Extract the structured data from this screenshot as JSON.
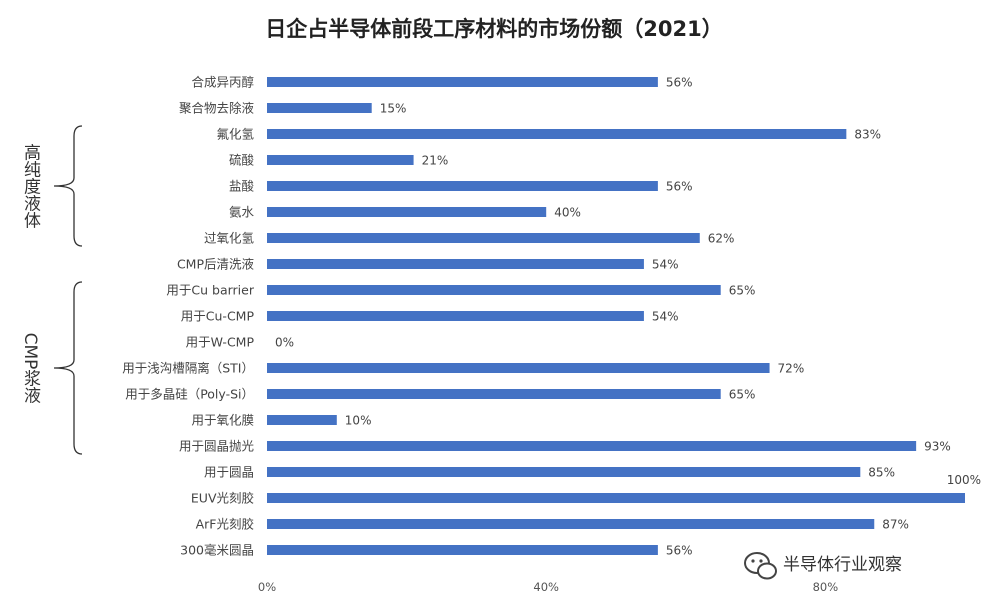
{
  "chart_data": {
    "type": "bar",
    "orientation": "horizontal",
    "title": "日企占半导体前段工序材料的市场份额（2021）",
    "categories": [
      "合成异丙醇",
      "聚合物去除液",
      "氟化氢",
      "硫酸",
      "盐酸",
      "氨水",
      "过氧化氢",
      "CMP后清洗液",
      "用于Cu barrier",
      "用于Cu-CMP",
      "用于W-CMP",
      "用于浅沟槽隔离（STI）",
      "用于多晶硅（Poly-Si）",
      "用于氧化膜",
      "用于圆晶抛光",
      "用于圆晶",
      "EUV光刻胶",
      "ArF光刻胶",
      "300毫米圆晶"
    ],
    "values": [
      56,
      15,
      83,
      21,
      56,
      40,
      62,
      54,
      65,
      54,
      0,
      72,
      65,
      10,
      93,
      85,
      100,
      87,
      56
    ],
    "value_labels": [
      "56%",
      "15%",
      "83%",
      "21%",
      "56%",
      "40%",
      "62%",
      "54%",
      "65%",
      "54%",
      "0%",
      "72%",
      "65%",
      "10%",
      "93%",
      "85%",
      "100%",
      "87%",
      "56%"
    ],
    "xlim": [
      0,
      100
    ],
    "x_ticks": [
      0,
      40,
      80
    ],
    "x_tick_labels": [
      "0%",
      "40%",
      "80%"
    ],
    "bar_color": "#4472c4",
    "grid": false,
    "groups": [
      {
        "label": "高纯度液体",
        "first_index": 2,
        "last_index": 6
      },
      {
        "label": "CMP浆液",
        "first_index": 8,
        "last_index": 14
      }
    ]
  },
  "watermark": {
    "icon": "wechat-icon",
    "text": "半导体行业观察"
  }
}
